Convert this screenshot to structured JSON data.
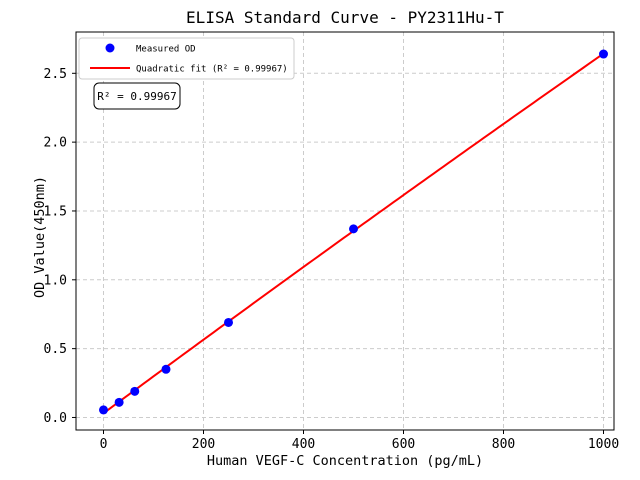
{
  "chart_data": {
    "type": "scatter",
    "title": "ELISA Standard Curve - PY2311Hu-T",
    "xlabel": "Human VEGF-C Concentration (pg/mL)",
    "ylabel": "OD Value(450nm)",
    "x": [
      0,
      31.25,
      62.5,
      125,
      250,
      500,
      1000
    ],
    "series": [
      {
        "name": "Measured OD",
        "type": "scatter",
        "marker": "circle",
        "color": "#0000ff",
        "values": [
          0.055,
          0.11,
          0.19,
          0.35,
          0.69,
          1.37,
          2.64
        ]
      },
      {
        "name": "Quadratic fit (R² = 0.99967)",
        "type": "line",
        "color": "#ff0000",
        "fit": "quadratic",
        "r_squared": 0.99967,
        "x_range": [
          0,
          1000
        ]
      }
    ],
    "x_ticks": [
      0,
      200,
      400,
      600,
      800,
      1000
    ],
    "y_ticks": [
      0,
      0.5,
      1,
      1.5,
      2,
      2.5
    ],
    "y_tick_decimals": 1,
    "xlim": [
      -55,
      1021
    ],
    "ylim": [
      -0.091,
      2.8
    ],
    "grid": {
      "visible": true,
      "linestyle": "dashed",
      "color": "#cccccc"
    },
    "axis_color": "#000000",
    "legend": {
      "position": "upper-left",
      "items": [
        {
          "label": "Measured OD",
          "marker": "dot",
          "color": "#0000ff"
        },
        {
          "label": "Quadratic fit (R² = 0.99967)",
          "marker": "line",
          "color": "#ff0000"
        }
      ]
    },
    "annotation": {
      "text": "R² = 0.99967"
    }
  }
}
